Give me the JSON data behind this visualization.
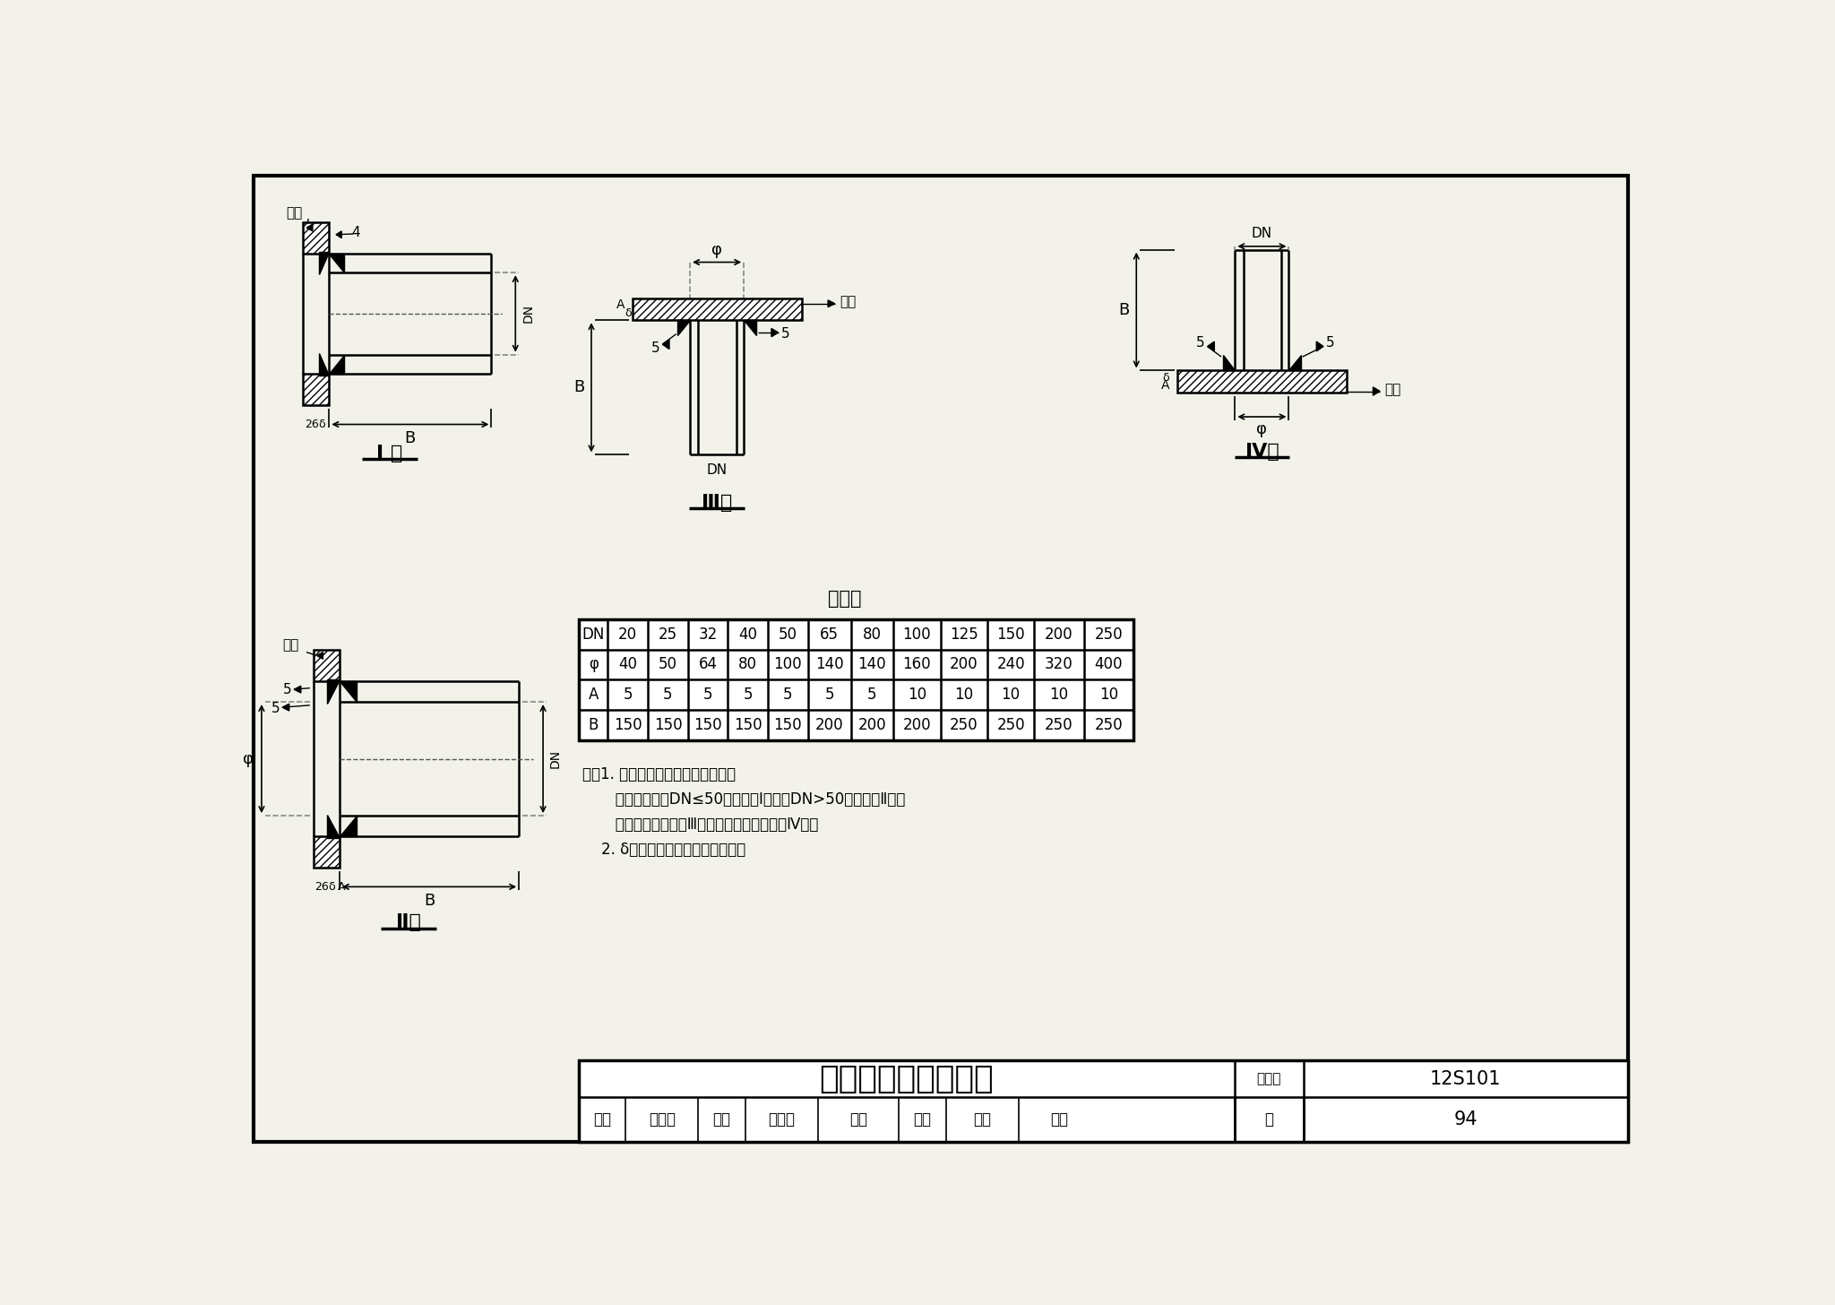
{
  "title": "水箱配管接头安装图",
  "catalog_no_label": "图集号",
  "catalog_val": "12S101",
  "page_label": "页",
  "page_val": "94",
  "table_title": "尺寸表",
  "table_headers": [
    "DN",
    "20",
    "25",
    "32",
    "40",
    "50",
    "65",
    "80",
    "100",
    "125",
    "150",
    "200",
    "250"
  ],
  "table_row_phi": [
    "φ",
    "40",
    "50",
    "64",
    "80",
    "100",
    "140",
    "140",
    "160",
    "200",
    "240",
    "320",
    "400"
  ],
  "table_row_A": [
    "A",
    "5",
    "5",
    "5",
    "5",
    "5",
    "5",
    "5",
    "10",
    "10",
    "10",
    "10",
    "10"
  ],
  "table_row_B": [
    "B",
    "150",
    "150",
    "150",
    "150",
    "150",
    "200",
    "200",
    "200",
    "250",
    "250",
    "250",
    "250"
  ],
  "note1": "注：1. 水筱配管管接头分四种型式：",
  "note2": "       笱壁配管：当DN≤50时，采用Ⅰ型；当DN>50时，采用Ⅱ型。",
  "note3": "       笱底配管接头采用Ⅲ型，笱顶配管接头采用Ⅳ型。",
  "note4": "    2. δ为水筱壁（顶、底）的板厚。",
  "label_type1": "Ⅰ 型",
  "label_type2": "Ⅱ型",
  "label_type3": "Ⅲ型",
  "label_type4": "Ⅳ型",
  "label_boxwall": "笱壁",
  "label_boxbottom": "笱底",
  "label_boxtop": "笱顶",
  "bg_color": "#f2f2ea",
  "review_labels": [
    "审核",
    "白金多",
    "校对",
    "杨启东",
    "伯脉",
    "设计",
    "任放",
    "仕次"
  ]
}
